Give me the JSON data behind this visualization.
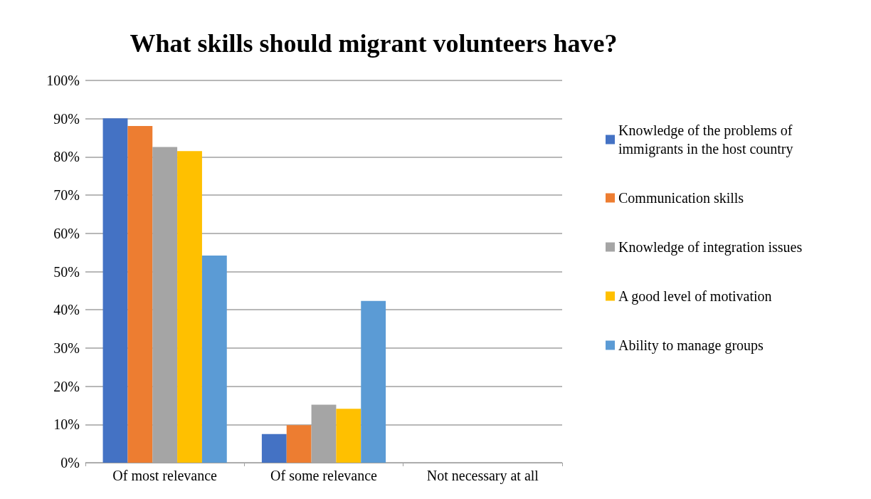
{
  "chart_data": {
    "type": "bar",
    "title": "What skills should migrant volunteers have?",
    "categories": [
      "Of most relevance",
      "Of some relevance",
      "Not necessary at all"
    ],
    "series": [
      {
        "name": "Knowledge of the problems of immigrants in the host country",
        "color": "#4472c4",
        "values": [
          90.1,
          7.5,
          0
        ]
      },
      {
        "name": "Communication skills",
        "color": "#ed7d31",
        "values": [
          88.1,
          9.8,
          0
        ]
      },
      {
        "name": "Knowledge of integration issues",
        "color": "#a5a5a5",
        "values": [
          82.6,
          15.2,
          0
        ]
      },
      {
        "name": "A good level of motivation",
        "color": "#ffc000",
        "values": [
          81.5,
          14.1,
          0
        ]
      },
      {
        "name": "Ability to manage groups",
        "color": "#5b9bd5",
        "values": [
          54.2,
          42.3,
          0
        ]
      }
    ],
    "ylim": [
      0,
      100
    ],
    "yticks": [
      {
        "value": 0,
        "label": "0%"
      },
      {
        "value": 10,
        "label": "10%"
      },
      {
        "value": 20,
        "label": "20%"
      },
      {
        "value": 30,
        "label": "30%"
      },
      {
        "value": 40,
        "label": "40%"
      },
      {
        "value": 50,
        "label": "50%"
      },
      {
        "value": 60,
        "label": "60%"
      },
      {
        "value": 70,
        "label": "70%"
      },
      {
        "value": 80,
        "label": "80%"
      },
      {
        "value": 90,
        "label": "90%"
      },
      {
        "value": 100,
        "label": "100%"
      }
    ],
    "grid": "y",
    "legend": "right"
  }
}
